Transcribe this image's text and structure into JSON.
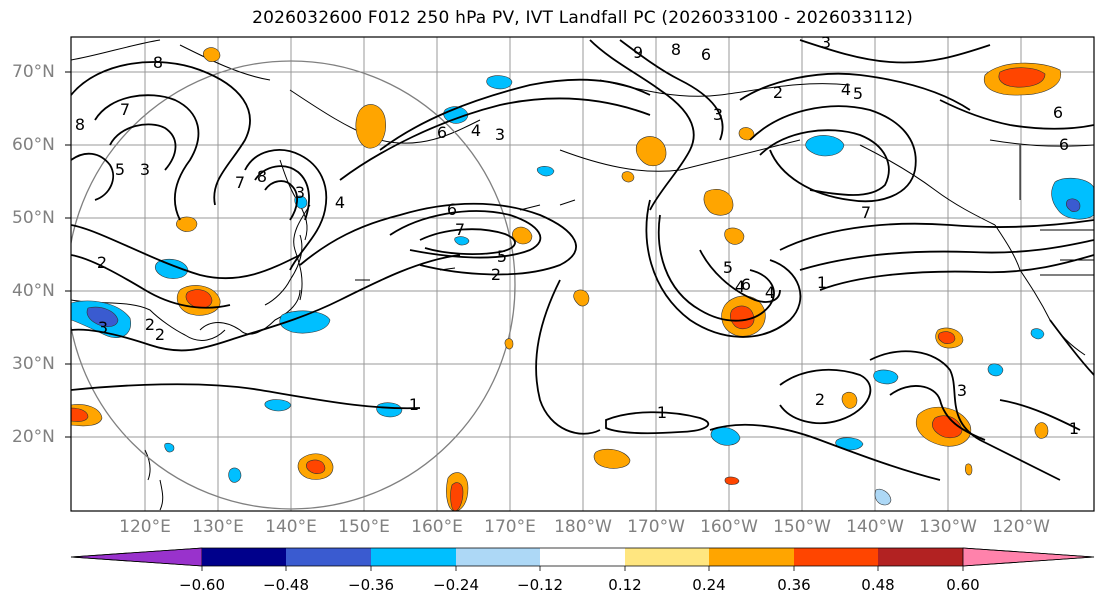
{
  "title": "2026032600 F012 250 hPa PV, IVT Landfall PC (2026033100 - 2026033112)",
  "lat_labels": [
    "70°N",
    "60°N",
    "50°N",
    "40°N",
    "30°N",
    "20°N"
  ],
  "lon_labels": [
    "120°E",
    "130°E",
    "140°E",
    "150°E",
    "160°E",
    "170°E",
    "180°W",
    "170°W",
    "160°W",
    "150°W",
    "140°W",
    "130°W",
    "120°W"
  ],
  "colorbar": {
    "ticks": [
      "−0.60",
      "−0.48",
      "−0.36",
      "−0.24",
      "−0.12",
      "0.12",
      "0.24",
      "0.36",
      "0.48",
      "0.60"
    ],
    "colors": [
      "#9932cc",
      "#00008b",
      "#3a5bd0",
      "#00bfff",
      "#add8f6",
      "#ffffff",
      "#ffe680",
      "#ffa500",
      "#ff4500",
      "#b22222",
      "#ff82ab"
    ]
  },
  "contour_labels": [
    "8",
    "7",
    "8",
    "5",
    "3",
    "7",
    "8",
    "3",
    "4",
    "2",
    "2",
    "2",
    "3",
    "6",
    "7",
    "5",
    "2",
    "1",
    "1",
    "6",
    "4",
    "3",
    "9",
    "8",
    "6",
    "2",
    "3",
    "4",
    "5",
    "6",
    "6",
    "7",
    "5",
    "4",
    "4",
    "6",
    "1",
    "2",
    "3",
    "1",
    "3"
  ]
}
